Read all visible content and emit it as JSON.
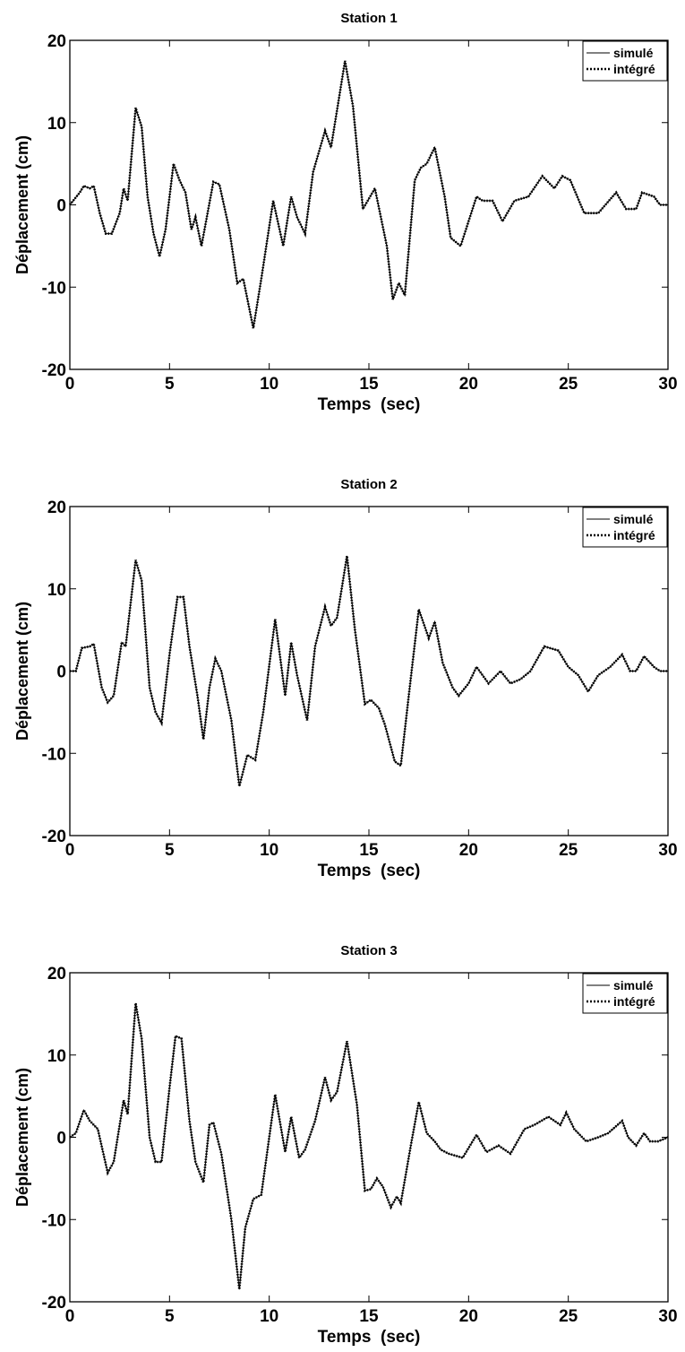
{
  "chart_data": [
    {
      "type": "line",
      "title": "Station 1",
      "xlabel": "Temps  (sec)",
      "ylabel": "Déplacement (cm)",
      "x": [
        0,
        0.5,
        0.7,
        1,
        1.2,
        1.5,
        1.8,
        2.1,
        2.5,
        2.7,
        2.9,
        3.3,
        3.6,
        3.9,
        4.2,
        4.5,
        4.8,
        5.2,
        5.5,
        5.8,
        6.1,
        6.3,
        6.6,
        7.2,
        7.5,
        8,
        8.4,
        8.7,
        9.2,
        9.6,
        10.2,
        10.7,
        11.1,
        11.4,
        11.8,
        12.2,
        12.8,
        13.1,
        13.8,
        14.2,
        14.7,
        15.3,
        15.9,
        16.2,
        16.5,
        16.8,
        17.3,
        17.6,
        17.9,
        18.3,
        18.8,
        19.1,
        19.6,
        20.4,
        20.7,
        21.2,
        21.7,
        22.3,
        23,
        23.7,
        24.3,
        24.7,
        25.1,
        25.8,
        26.5,
        27.4,
        27.9,
        28.4,
        28.7,
        29.3,
        29.6,
        30
      ],
      "series": [
        {
          "name": "simulé",
          "color": "#000000",
          "style": "solid",
          "values": [
            0,
            1.5,
            2.3,
            2,
            2.3,
            -1,
            -3.5,
            -3.5,
            -1,
            2,
            0.5,
            11.8,
            9.5,
            1,
            -3.5,
            -6.3,
            -3,
            5,
            3,
            1.5,
            -3,
            -1.5,
            -5,
            2.8,
            2.5,
            -3,
            -9.5,
            -9,
            -15,
            -9,
            0.5,
            -5,
            1,
            -1.5,
            -3.5,
            4,
            9,
            7,
            17.5,
            12,
            -0.5,
            2,
            -5,
            -11.5,
            -9.5,
            -11,
            3,
            4.5,
            5,
            7,
            1,
            -4,
            -5,
            1,
            0.5,
            0.5,
            -2,
            0.5,
            1,
            3.5,
            2,
            3.5,
            3,
            -1,
            -1,
            1.5,
            -0.5,
            -0.5,
            1.5,
            1,
            0,
            0
          ]
        },
        {
          "name": "intégré",
          "color": "#000000",
          "style": "dotted",
          "values": [
            0,
            1.5,
            2.3,
            2,
            2.3,
            -1,
            -3.5,
            -3.5,
            -1,
            2,
            0.5,
            11.8,
            9.5,
            1,
            -3.5,
            -6.3,
            -3,
            5,
            3,
            1.5,
            -3,
            -1.5,
            -5,
            2.8,
            2.5,
            -3,
            -9.5,
            -9,
            -15,
            -9,
            0.5,
            -5,
            1,
            -1.5,
            -3.5,
            4,
            9,
            7,
            17.5,
            12,
            -0.5,
            2,
            -5,
            -11.5,
            -9.5,
            -11,
            3,
            4.5,
            5,
            7,
            1,
            -4,
            -5,
            1,
            0.5,
            0.5,
            -2,
            0.5,
            1,
            3.5,
            2,
            3.5,
            3,
            -1,
            -1,
            1.5,
            -0.5,
            -0.5,
            1.5,
            1,
            0,
            0
          ]
        }
      ],
      "xlim": [
        0,
        30
      ],
      "xticks": [
        0,
        5,
        10,
        15,
        20,
        25,
        30
      ],
      "ylim": [
        -20,
        20
      ],
      "yticks": [
        -20,
        -10,
        0,
        10,
        20
      ],
      "legend": "upper right"
    },
    {
      "type": "line",
      "title": "Station 2",
      "xlabel": "Temps  (sec)",
      "ylabel": "Déplacement (cm)",
      "x": [
        0,
        0.3,
        0.6,
        1,
        1.2,
        1.6,
        1.9,
        2.2,
        2.6,
        2.8,
        3.3,
        3.6,
        4,
        4.3,
        4.6,
        5,
        5.4,
        5.7,
        6,
        6.4,
        6.7,
        7,
        7.3,
        7.6,
        8.1,
        8.5,
        8.9,
        9.3,
        9.7,
        10.3,
        10.8,
        11.1,
        11.4,
        11.9,
        12.3,
        12.8,
        13.1,
        13.4,
        13.9,
        14.3,
        14.8,
        15.1,
        15.5,
        15.8,
        16.3,
        16.6,
        17,
        17.5,
        18,
        18.3,
        18.7,
        19.2,
        19.5,
        20,
        20.4,
        21,
        21.6,
        22.1,
        22.6,
        23.1,
        23.8,
        24.5,
        25,
        25.5,
        26,
        26.5,
        27.1,
        27.7,
        28.1,
        28.4,
        28.8,
        29.3,
        29.6,
        30
      ],
      "series": [
        {
          "name": "simulé",
          "color": "#000000",
          "style": "solid",
          "values": [
            0,
            0,
            2.8,
            3,
            3.3,
            -2,
            -3.8,
            -3,
            3.5,
            3,
            13.5,
            11,
            -2,
            -5,
            -6.3,
            2,
            9,
            9,
            3,
            -3,
            -8.3,
            -2,
            1.5,
            0,
            -6,
            -14,
            -10.2,
            -10.8,
            -5,
            6.3,
            -3,
            3.5,
            -0.5,
            -6,
            3,
            7.8,
            5.5,
            6.5,
            14,
            5,
            -4,
            -3.5,
            -4.5,
            -6.5,
            -11,
            -11.5,
            -3,
            7.5,
            4,
            6,
            1,
            -2,
            -3,
            -1.5,
            0.5,
            -1.5,
            0,
            -1.5,
            -1,
            0,
            3,
            2.5,
            0.5,
            -0.5,
            -2.5,
            -0.5,
            0.5,
            2,
            0,
            0,
            1.8,
            0.5,
            0,
            0
          ]
        },
        {
          "name": "intégré",
          "color": "#000000",
          "style": "dotted",
          "values": [
            0,
            0,
            2.8,
            3,
            3.3,
            -2,
            -3.8,
            -3,
            3.5,
            3,
            13.5,
            11,
            -2,
            -5,
            -6.3,
            2,
            9,
            9,
            3,
            -3,
            -8.3,
            -2,
            1.5,
            0,
            -6,
            -14,
            -10.2,
            -10.8,
            -5,
            6.3,
            -3,
            3.5,
            -0.5,
            -6,
            3,
            7.8,
            5.5,
            6.5,
            14,
            5,
            -4,
            -3.5,
            -4.5,
            -6.5,
            -11,
            -11.5,
            -3,
            7.5,
            4,
            6,
            1,
            -2,
            -3,
            -1.5,
            0.5,
            -1.5,
            0,
            -1.5,
            -1,
            0,
            3,
            2.5,
            0.5,
            -0.5,
            -2.5,
            -0.5,
            0.5,
            2,
            0,
            0,
            1.8,
            0.5,
            0,
            0
          ]
        }
      ],
      "xlim": [
        0,
        30
      ],
      "xticks": [
        0,
        5,
        10,
        15,
        20,
        25,
        30
      ],
      "ylim": [
        -20,
        20
      ],
      "yticks": [
        -20,
        -10,
        0,
        10,
        20
      ],
      "legend": "upper right"
    },
    {
      "type": "line",
      "title": "Station 3",
      "xlabel": "Temps  (sec)",
      "ylabel": "Déplacement (cm)",
      "x": [
        0,
        0.3,
        0.7,
        1,
        1.4,
        1.9,
        2.2,
        2.7,
        2.9,
        3.3,
        3.6,
        4,
        4.3,
        4.6,
        5,
        5.3,
        5.6,
        6,
        6.3,
        6.7,
        7,
        7.2,
        7.6,
        8.1,
        8.5,
        8.8,
        9.2,
        9.6,
        10.3,
        10.8,
        11.1,
        11.5,
        11.8,
        12.3,
        12.8,
        13.1,
        13.4,
        13.9,
        14.4,
        14.8,
        15.1,
        15.4,
        15.7,
        16.1,
        16.4,
        16.6,
        17.1,
        17.5,
        17.9,
        18.3,
        18.6,
        19,
        19.7,
        20.4,
        20.9,
        21.5,
        22.1,
        22.8,
        23.3,
        24,
        24.6,
        24.9,
        25.3,
        25.9,
        26.5,
        27,
        27.7,
        28,
        28.4,
        28.8,
        29.1,
        29.5,
        30
      ],
      "series": [
        {
          "name": "simulé",
          "color": "#000000",
          "style": "solid",
          "values": [
            0,
            0.5,
            3.3,
            2,
            1,
            -4.3,
            -3,
            4.5,
            2.8,
            16.3,
            12,
            0,
            -3,
            -3,
            6,
            12.3,
            12,
            2,
            -3,
            -5.5,
            1.5,
            1.8,
            -2,
            -10,
            -18.5,
            -11,
            -7.5,
            -7,
            5.2,
            -1.8,
            2.5,
            -2.5,
            -1.5,
            2,
            7.3,
            4.5,
            5.5,
            11.7,
            4,
            -6.5,
            -6.3,
            -5,
            -6,
            -8.5,
            -7.2,
            -8,
            -1,
            4.3,
            0.5,
            -0.5,
            -1.5,
            -2,
            -2.5,
            0.3,
            -1.8,
            -1,
            -2,
            1,
            1.5,
            2.5,
            1.5,
            3,
            1,
            -0.5,
            0,
            0.5,
            2,
            0,
            -1,
            0.5,
            -0.5,
            -0.5,
            0
          ]
        },
        {
          "name": "intégré",
          "color": "#000000",
          "style": "dotted",
          "values": [
            0,
            0.5,
            3.3,
            2,
            1,
            -4.3,
            -3,
            4.5,
            2.8,
            16.3,
            12,
            0,
            -3,
            -3,
            6,
            12.3,
            12,
            2,
            -3,
            -5.5,
            1.5,
            1.8,
            -2,
            -10,
            -18.5,
            -11,
            -7.5,
            -7,
            5.2,
            -1.8,
            2.5,
            -2.5,
            -1.5,
            2,
            7.3,
            4.5,
            5.5,
            11.7,
            4,
            -6.5,
            -6.3,
            -5,
            -6,
            -8.5,
            -7.2,
            -8,
            -1,
            4.3,
            0.5,
            -0.5,
            -1.5,
            -2,
            -2.5,
            0.3,
            -1.8,
            -1,
            -2,
            1,
            1.5,
            2.5,
            1.5,
            3,
            1,
            -0.5,
            0,
            0.5,
            2,
            0,
            -1,
            0.5,
            -0.5,
            -0.5,
            0
          ]
        }
      ],
      "xlim": [
        0,
        30
      ],
      "xticks": [
        0,
        5,
        10,
        15,
        20,
        25,
        30
      ],
      "ylim": [
        -20,
        20
      ],
      "yticks": [
        -20,
        -10,
        0,
        10,
        20
      ],
      "legend": "upper right"
    }
  ]
}
